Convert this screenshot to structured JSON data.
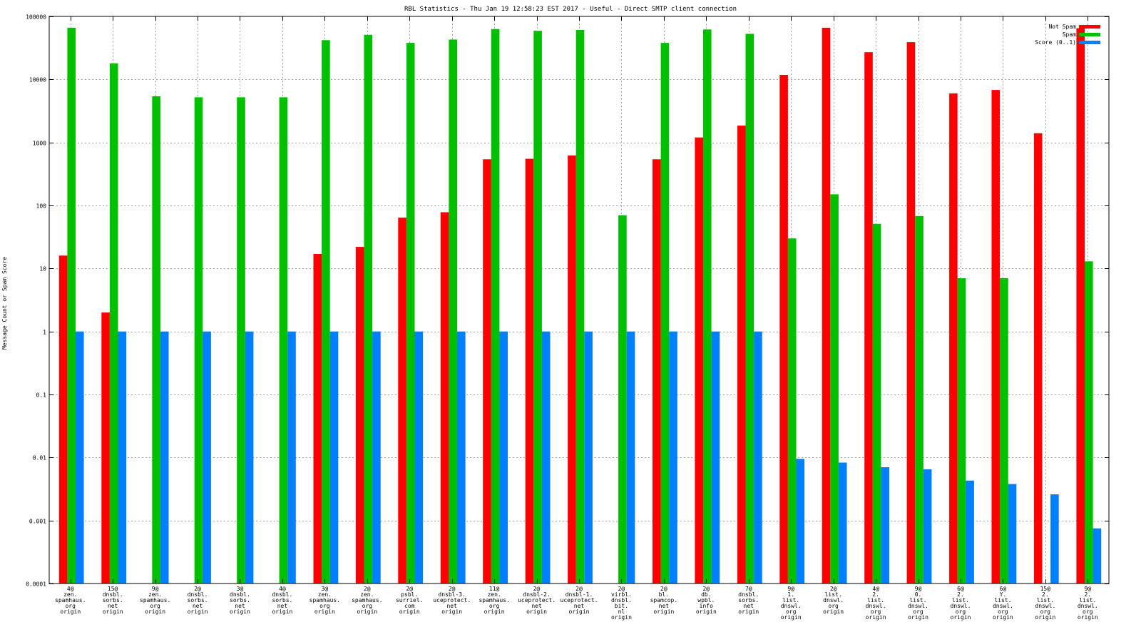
{
  "chart_data": {
    "type": "bar",
    "title": "RBL Statistics - Thu Jan 19 12:58:23 EST 2017 - Useful - Direct SMTP client connection",
    "xlabel": "",
    "ylabel": "Message Count or Spam Score",
    "yscale": "log",
    "ylim": [
      0.0001,
      100000
    ],
    "yticks": [
      "0.0001",
      "0.001",
      "0.01",
      "0.1",
      "1",
      "10",
      "100",
      "1000",
      "10000",
      "100000"
    ],
    "grid": true,
    "legend_position": "top-right",
    "categories": [
      [
        "4@",
        "zen.",
        "spamhaus.",
        "org",
        "origin"
      ],
      [
        "15@",
        "dnsbl.",
        "sorbs.",
        "net",
        "origin"
      ],
      [
        "9@",
        "zen.",
        "spamhaus.",
        "org",
        "origin"
      ],
      [
        "2@",
        "dnsbl.",
        "sorbs.",
        "net",
        "origin"
      ],
      [
        "3@",
        "dnsbl.",
        "sorbs.",
        "net",
        "origin"
      ],
      [
        "4@",
        "dnsbl.",
        "sorbs.",
        "net",
        "origin"
      ],
      [
        "3@",
        "zen.",
        "spamhaus.",
        "org",
        "origin"
      ],
      [
        "2@",
        "zen.",
        "spamhaus.",
        "org",
        "origin"
      ],
      [
        "2@",
        "psbl.",
        "surriel.",
        "com",
        "origin"
      ],
      [
        "2@",
        "dnsbl-3.",
        "uceprotect.",
        "net",
        "origin"
      ],
      [
        "11@",
        "zen.",
        "spamhaus.",
        "org",
        "origin"
      ],
      [
        "2@",
        "dnsbl-2.",
        "uceprotect.",
        "net",
        "origin"
      ],
      [
        "2@",
        "dnsbl-1.",
        "uceprotect.",
        "net",
        "origin"
      ],
      [
        "2@",
        "virbl.",
        "dnsbl.",
        "bit.",
        "nl",
        "origin"
      ],
      [
        "2@",
        "bl.",
        "spamcop.",
        "net",
        "origin"
      ],
      [
        "2@",
        "db.",
        "wpbl.",
        "info",
        "origin"
      ],
      [
        "7@",
        "dnsbl.",
        "sorbs.",
        "net",
        "origin"
      ],
      [
        "9@",
        "1.",
        "list.",
        "dnswl.",
        "org",
        "origin"
      ],
      [
        "2@",
        "list.",
        "dnswl.",
        "org",
        "origin"
      ],
      [
        "4@",
        "2.",
        "list.",
        "dnswl.",
        "org",
        "origin"
      ],
      [
        "9@",
        "0.",
        "list.",
        "dnswl.",
        "org",
        "origin"
      ],
      [
        "6@",
        "2.",
        "list.",
        "dnswl.",
        "org",
        "origin"
      ],
      [
        "6@",
        "Y.",
        "list.",
        "dnswl.",
        "org",
        "origin"
      ],
      [
        "15@",
        "2.",
        "list.",
        "dnswl.",
        "org",
        "origin"
      ],
      [
        "9@",
        "2.",
        "list.",
        "dnswl.",
        "org",
        "origin"
      ]
    ],
    "series": [
      {
        "name": "Not Spam",
        "color": "#ff0000",
        "values": [
          16,
          2,
          null,
          null,
          null,
          null,
          17,
          22,
          64,
          78,
          540,
          550,
          620,
          null,
          540,
          1200,
          1850,
          11800,
          66000,
          27000,
          39000,
          6000,
          6800,
          1400,
          65000
        ]
      },
      {
        "name": "Spam",
        "color": "#00c000",
        "values": [
          66000,
          18000,
          5400,
          5200,
          5200,
          5200,
          42000,
          51000,
          38000,
          43000,
          63000,
          59000,
          61000,
          70,
          38000,
          62000,
          53000,
          30,
          150,
          51,
          68,
          7,
          7,
          null,
          13
        ]
      },
      {
        "name": "Score (0..1)",
        "color": "#0080ff",
        "values": [
          1,
          1,
          1,
          1,
          1,
          1,
          1,
          1,
          1,
          1,
          1,
          1,
          1,
          1,
          1,
          1,
          1,
          0.0095,
          0.0083,
          0.007,
          0.0065,
          0.0043,
          0.0038,
          0.0026,
          0.00075
        ]
      }
    ]
  }
}
